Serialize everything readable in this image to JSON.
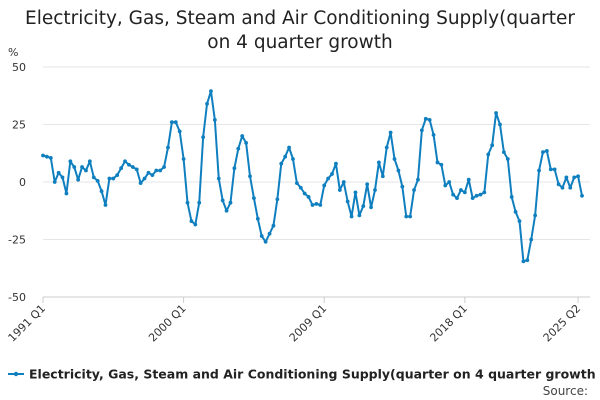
{
  "chart_data": {
    "type": "line",
    "title_lines": [
      "Electricity, Gas, Steam and Air Conditioning Supply(quarter",
      "on 4 quarter growth"
    ],
    "ylabel": "%",
    "ylim": [
      -50,
      50
    ],
    "yticks": [
      50,
      25,
      0,
      -25,
      -50
    ],
    "xticks": [
      {
        "index": 0,
        "label": "1991 Q1"
      },
      {
        "index": 36,
        "label": "2000 Q1"
      },
      {
        "index": 72,
        "label": "2009 Q1"
      },
      {
        "index": 108,
        "label": "2018 Q1"
      },
      {
        "index": 137,
        "label": "2025 Q2"
      }
    ],
    "grid": true,
    "legend_position": "bottom",
    "source_text": "Source:",
    "series": [
      {
        "name": "Electricity, Gas, Steam and Air Conditioning Supply(quarter on 4 quarter growth",
        "color": "#0f7fbf",
        "values": [
          11.5,
          11,
          10.5,
          0,
          4,
          2,
          -5,
          9,
          6.5,
          1,
          6.5,
          5,
          9,
          2,
          0.5,
          -4,
          -10,
          1.5,
          1.5,
          3,
          6,
          9,
          7.5,
          6.5,
          5.5,
          -0.5,
          1.5,
          4,
          3,
          5,
          5,
          6.5,
          15,
          26,
          26,
          22,
          10,
          -9,
          -17,
          -18.5,
          -9,
          19.5,
          34,
          39.5,
          27,
          1.5,
          -8,
          -12.5,
          -9,
          6,
          14.5,
          20,
          17,
          2.5,
          -7,
          -16,
          -23.5,
          -26,
          -22.5,
          -19,
          -7.5,
          8,
          11,
          15,
          10,
          -0.5,
          -2.5,
          -5,
          -6.5,
          -10,
          -9.5,
          -10,
          -1.5,
          1.5,
          3.5,
          8,
          -3.5,
          0,
          -8.5,
          -15,
          -4.5,
          -14.5,
          -10.5,
          -1,
          -11,
          -3.5,
          8.5,
          2.5,
          15,
          21.5,
          10,
          5,
          -2,
          -15,
          -15,
          -3.5,
          1,
          22.5,
          27.5,
          27,
          20.5,
          8.5,
          7.5,
          -1.5,
          0,
          -5.5,
          -7,
          -3.5,
          -4.5,
          1,
          -7,
          -6,
          -5.5,
          -4.5,
          12,
          16,
          30,
          25,
          13,
          10,
          -6.5,
          -13,
          -17,
          -34.5,
          -34,
          -25,
          -14.5,
          5,
          13,
          13.5,
          5.5,
          5.5,
          -1,
          -2.5,
          2,
          -2.5,
          2,
          2.5,
          -6
        ]
      }
    ]
  }
}
